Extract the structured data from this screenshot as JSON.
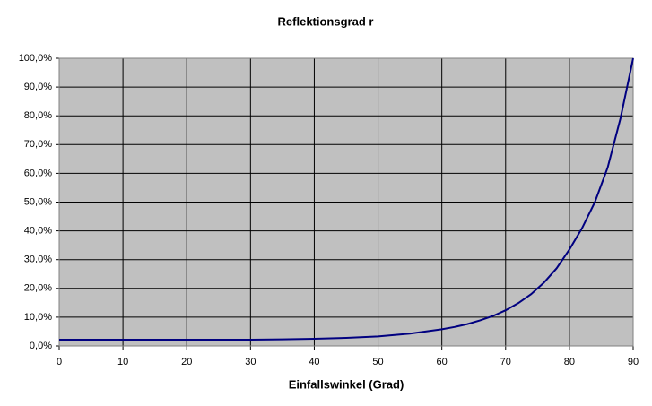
{
  "chart_data": {
    "type": "line",
    "title": "Reflektionsgrad r",
    "x_label": "Einfallswinkel (Grad)",
    "x": [
      0,
      5,
      10,
      15,
      20,
      25,
      30,
      35,
      40,
      45,
      50,
      55,
      60,
      62,
      64,
      66,
      68,
      70,
      72,
      74,
      76,
      78,
      80,
      82,
      84,
      86,
      88,
      90
    ],
    "series": [
      {
        "name": "r",
        "color": "#000080",
        "values": [
          2.2,
          2.2,
          2.2,
          2.2,
          2.2,
          2.2,
          2.2,
          2.3,
          2.5,
          2.8,
          3.3,
          4.3,
          5.8,
          6.6,
          7.6,
          8.9,
          10.4,
          12.4,
          14.9,
          18,
          22,
          27,
          33.5,
          41,
          50,
          62,
          79,
          100
        ]
      }
    ],
    "xlim": [
      0,
      90
    ],
    "xticks": [
      0,
      10,
      20,
      30,
      40,
      50,
      60,
      70,
      80,
      90
    ],
    "ylim": [
      0,
      100
    ],
    "yticks": [
      {
        "value": 0,
        "label": "0,0%"
      },
      {
        "value": 10,
        "label": "10,0%"
      },
      {
        "value": 20,
        "label": "20,0%"
      },
      {
        "value": 30,
        "label": "30,0%"
      },
      {
        "value": 40,
        "label": "40,0%"
      },
      {
        "value": 50,
        "label": "50,0%"
      },
      {
        "value": 60,
        "label": "60,0%"
      },
      {
        "value": 70,
        "label": "70,0%"
      },
      {
        "value": 80,
        "label": "80,0%"
      },
      {
        "value": 90,
        "label": "90,0%"
      },
      {
        "value": 100,
        "label": "100,0%"
      }
    ],
    "grid": true,
    "plot_background": "#c0c0c0"
  }
}
